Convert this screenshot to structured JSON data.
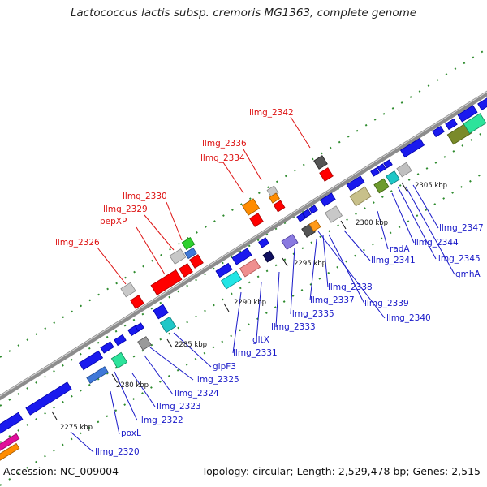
{
  "title": "Lactococcus lactis subsp. cremoris MG1363, complete genome",
  "footer": {
    "accession": "Accession: NC_009004",
    "summary": "Topology: circular; Length: 2,529,478 bp; Genes: 2,515"
  },
  "scale_labels": [
    "2275 kbp",
    "2280 kbp",
    "2285 kbp",
    "2290 kbp",
    "2295 kbp",
    "2300 kbp",
    "2305 kbp"
  ],
  "red_labels": [
    "llmg_2326",
    "pepXP",
    "llmg_2329",
    "llmg_2330",
    "llmg_2334",
    "llmg_2336",
    "llmg_2342"
  ],
  "blue_labels": [
    "llmg_2320",
    "poxL",
    "llmg_2322",
    "llmg_2323",
    "llmg_2324",
    "llmg_2325",
    "glpF3",
    "llmg_2331",
    "gltX",
    "llmg_2333",
    "llmg_2335",
    "llmg_2337",
    "llmg_2338",
    "llmg_2339",
    "llmg_2340",
    "llmg_2341",
    "radA",
    "llmg_2344",
    "llmg_2345",
    "gmhA",
    "llmg_2347"
  ],
  "colors": {
    "red": "#ff0000",
    "blue": "#0000ee",
    "backbone": "#8c8c8c",
    "dots": "#2e8b2e",
    "red_text": "#dd1111",
    "blue_text": "#1818c8"
  }
}
